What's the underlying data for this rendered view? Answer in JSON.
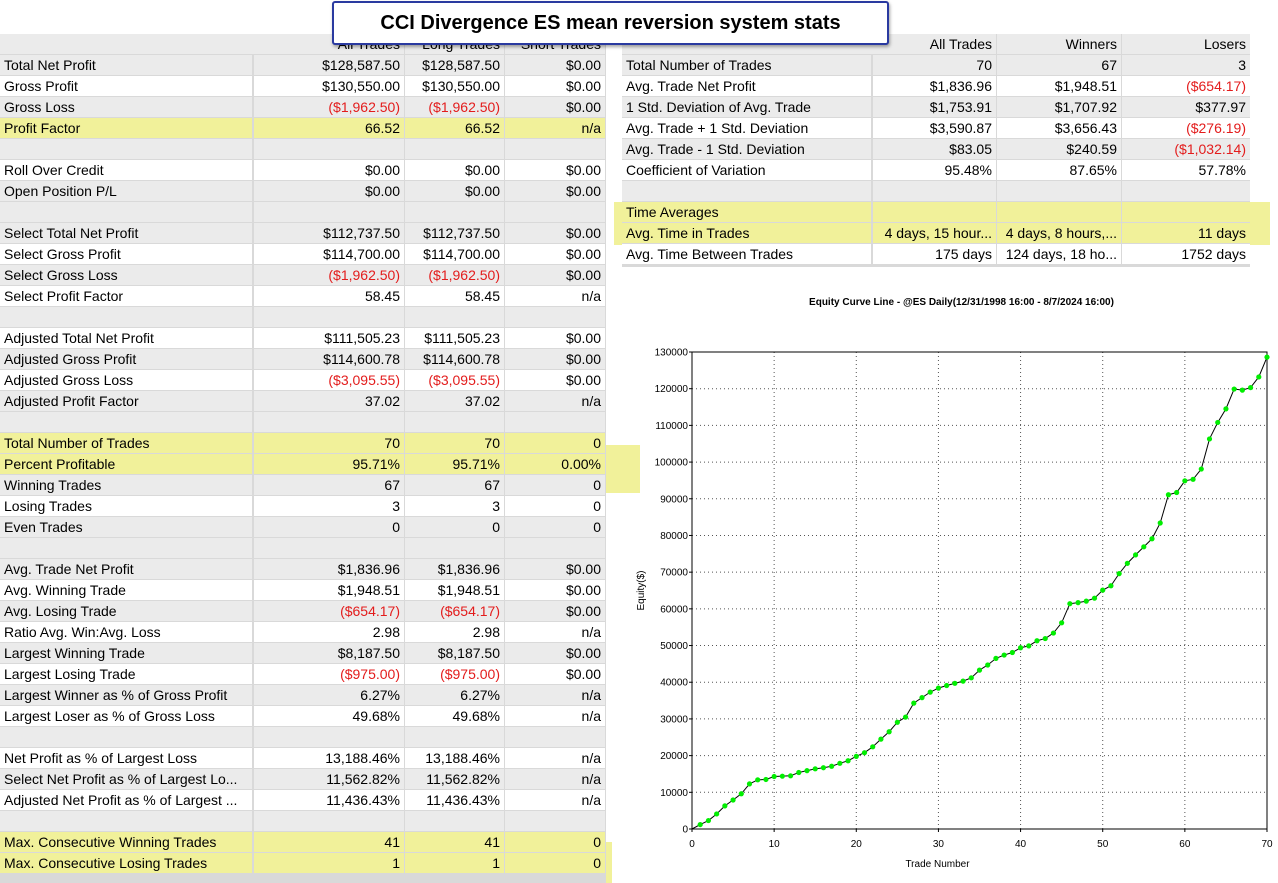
{
  "title": "CCI Divergence ES mean reversion system stats",
  "left_table": {
    "headers": [
      "All Trades",
      "Long Trades",
      "Short Trades"
    ],
    "rows": [
      {
        "label": "Total Net Profit",
        "v": [
          "$128,587.50",
          "$128,587.50",
          "$0.00"
        ]
      },
      {
        "label": "Gross Profit",
        "v": [
          "$130,550.00",
          "$130,550.00",
          "$0.00"
        ]
      },
      {
        "label": "Gross Loss",
        "v": [
          "($1,962.50)",
          "($1,962.50)",
          "$0.00"
        ],
        "neg": [
          true,
          true,
          false
        ]
      },
      {
        "label": "Profit Factor",
        "v": [
          "66.52",
          "66.52",
          "n/a"
        ],
        "hl": true
      },
      {
        "blank": true
      },
      {
        "label": "Roll Over Credit",
        "v": [
          "$0.00",
          "$0.00",
          "$0.00"
        ]
      },
      {
        "label": "Open Position P/L",
        "v": [
          "$0.00",
          "$0.00",
          "$0.00"
        ]
      },
      {
        "blank": true
      },
      {
        "label": "Select Total Net Profit",
        "v": [
          "$112,737.50",
          "$112,737.50",
          "$0.00"
        ]
      },
      {
        "label": "Select Gross Profit",
        "v": [
          "$114,700.00",
          "$114,700.00",
          "$0.00"
        ]
      },
      {
        "label": "Select Gross Loss",
        "v": [
          "($1,962.50)",
          "($1,962.50)",
          "$0.00"
        ],
        "neg": [
          true,
          true,
          false
        ]
      },
      {
        "label": "Select Profit Factor",
        "v": [
          "58.45",
          "58.45",
          "n/a"
        ]
      },
      {
        "blank": true
      },
      {
        "label": "Adjusted Total Net Profit",
        "v": [
          "$111,505.23",
          "$111,505.23",
          "$0.00"
        ]
      },
      {
        "label": "Adjusted Gross Profit",
        "v": [
          "$114,600.78",
          "$114,600.78",
          "$0.00"
        ]
      },
      {
        "label": "Adjusted Gross Loss",
        "v": [
          "($3,095.55)",
          "($3,095.55)",
          "$0.00"
        ],
        "neg": [
          true,
          true,
          false
        ]
      },
      {
        "label": "Adjusted Profit Factor",
        "v": [
          "37.02",
          "37.02",
          "n/a"
        ]
      },
      {
        "blank": true
      },
      {
        "label": "Total Number of Trades",
        "v": [
          "70",
          "70",
          "0"
        ],
        "hl": true
      },
      {
        "label": "Percent Profitable",
        "v": [
          "95.71%",
          "95.71%",
          "0.00%"
        ],
        "hl": true
      },
      {
        "label": "Winning Trades",
        "v": [
          "67",
          "67",
          "0"
        ]
      },
      {
        "label": "Losing Trades",
        "v": [
          "3",
          "3",
          "0"
        ]
      },
      {
        "label": "Even Trades",
        "v": [
          "0",
          "0",
          "0"
        ]
      },
      {
        "blank": true
      },
      {
        "label": "Avg. Trade Net Profit",
        "v": [
          "$1,836.96",
          "$1,836.96",
          "$0.00"
        ]
      },
      {
        "label": "Avg. Winning Trade",
        "v": [
          "$1,948.51",
          "$1,948.51",
          "$0.00"
        ]
      },
      {
        "label": "Avg. Losing Trade",
        "v": [
          "($654.17)",
          "($654.17)",
          "$0.00"
        ],
        "neg": [
          true,
          true,
          false
        ]
      },
      {
        "label": "Ratio Avg. Win:Avg. Loss",
        "v": [
          "2.98",
          "2.98",
          "n/a"
        ]
      },
      {
        "label": "Largest Winning Trade",
        "v": [
          "$8,187.50",
          "$8,187.50",
          "$0.00"
        ]
      },
      {
        "label": "Largest Losing Trade",
        "v": [
          "($975.00)",
          "($975.00)",
          "$0.00"
        ],
        "neg": [
          true,
          true,
          false
        ]
      },
      {
        "label": "Largest Winner as % of Gross Profit",
        "v": [
          "6.27%",
          "6.27%",
          "n/a"
        ]
      },
      {
        "label": "Largest Loser as % of Gross Loss",
        "v": [
          "49.68%",
          "49.68%",
          "n/a"
        ]
      },
      {
        "blank": true
      },
      {
        "label": "Net Profit as % of Largest Loss",
        "v": [
          "13,188.46%",
          "13,188.46%",
          "n/a"
        ]
      },
      {
        "label": "Select Net Profit as % of Largest Lo...",
        "v": [
          "11,562.82%",
          "11,562.82%",
          "n/a"
        ]
      },
      {
        "label": "Adjusted Net Profit as % of Largest ...",
        "v": [
          "11,436.43%",
          "11,436.43%",
          "n/a"
        ]
      },
      {
        "blank": true
      },
      {
        "label": "Max. Consecutive Winning Trades",
        "v": [
          "41",
          "41",
          "0"
        ],
        "hl": true
      },
      {
        "label": "Max. Consecutive Losing Trades",
        "v": [
          "1",
          "1",
          "0"
        ],
        "hl": true
      }
    ]
  },
  "right_table": {
    "headers": [
      "All Trades",
      "Winners",
      "Losers"
    ],
    "rows": [
      {
        "label": "Total Number of Trades",
        "v": [
          "70",
          "67",
          "3"
        ]
      },
      {
        "label": "Avg. Trade Net Profit",
        "v": [
          "$1,836.96",
          "$1,948.51",
          "($654.17)"
        ],
        "neg": [
          false,
          false,
          true
        ]
      },
      {
        "label": "1 Std. Deviation of Avg. Trade",
        "v": [
          "$1,753.91",
          "$1,707.92",
          "$377.97"
        ]
      },
      {
        "label": "Avg. Trade + 1 Std. Deviation",
        "v": [
          "$3,590.87",
          "$3,656.43",
          "($276.19)"
        ],
        "neg": [
          false,
          false,
          true
        ]
      },
      {
        "label": "Avg. Trade - 1 Std. Deviation",
        "v": [
          "$83.05",
          "$240.59",
          "($1,032.14)"
        ],
        "neg": [
          false,
          false,
          true
        ]
      },
      {
        "label": "Coefficient of Variation",
        "v": [
          "95.48%",
          "87.65%",
          "57.78%"
        ]
      },
      {
        "blank": true
      },
      {
        "label": "Time Averages",
        "v": [
          "",
          "",
          ""
        ],
        "hl": true
      },
      {
        "label": "Avg. Time in Trades",
        "v": [
          "4 days, 15 hour...",
          "4 days, 8 hours,...",
          "11 days"
        ],
        "hl": true
      },
      {
        "label": "Avg. Time Between Trades",
        "v": [
          "175 days",
          "124 days, 18 ho...",
          "1752 days"
        ]
      }
    ]
  },
  "colors": {
    "negative": "#e31c1c",
    "highlight": "#f1f19a",
    "marker": "#00ee00",
    "line": "#000000"
  },
  "chart_data": {
    "type": "line",
    "title": "Equity Curve Line - @ES Daily(12/31/1998 16:00 - 8/7/2024 16:00)",
    "xlabel": "Trade Number",
    "ylabel": "Equity($)",
    "xlim": [
      0,
      70
    ],
    "ylim": [
      0,
      130000
    ],
    "xticks": [
      0,
      10,
      20,
      30,
      40,
      50,
      60,
      70
    ],
    "yticks": [
      0,
      10000,
      20000,
      30000,
      40000,
      50000,
      60000,
      70000,
      80000,
      90000,
      100000,
      110000,
      120000,
      130000
    ],
    "grid": true,
    "series": [
      {
        "values": [
          0,
          1200,
          2300,
          4100,
          6300,
          7900,
          9600,
          12300,
          13400,
          13500,
          14300,
          14400,
          14500,
          15400,
          15900,
          16400,
          16700,
          17100,
          17900,
          18600,
          19800,
          20800,
          22400,
          24500,
          26500,
          29100,
          30500,
          34300,
          35800,
          37300,
          38400,
          39100,
          39700,
          40300,
          41200,
          43300,
          44700,
          46500,
          47400,
          48100,
          49400,
          49900,
          51300,
          51900,
          53400,
          56200,
          61400,
          61700,
          62100,
          62900,
          65100,
          66300,
          69600,
          72400,
          74700,
          76900,
          79100,
          83400,
          91100,
          91700,
          94900,
          95300,
          98100,
          106300,
          110800,
          114500,
          119900,
          119600,
          120300,
          123200,
          128600
        ]
      }
    ]
  }
}
